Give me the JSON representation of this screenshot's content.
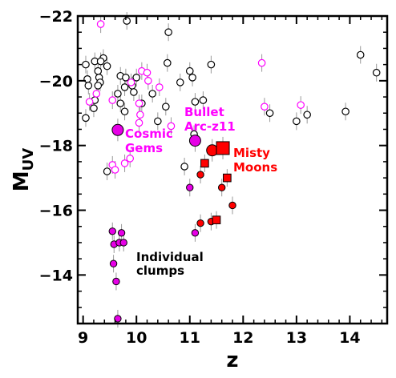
{
  "chart_data": {
    "type": "scatter",
    "xlabel": "z",
    "ylabel_main": "M",
    "ylabel_sub": "UV",
    "xlim": [
      8.9,
      14.7
    ],
    "ylim": [
      -12.5,
      -22.0
    ],
    "y_inverted": true,
    "x_ticks": [
      9,
      10,
      11,
      12,
      13,
      14
    ],
    "y_ticks": [
      -22,
      -20,
      -18,
      -16,
      -14
    ],
    "grid": false,
    "colors": {
      "open_black": "#000000",
      "open_magenta": "#ff00ff",
      "filled_magenta": "#e600e6",
      "filled_red": "#ff0000",
      "errorbar": "#999999"
    },
    "annotations": [
      {
        "id": "bullet",
        "lines": [
          "Bullet",
          "Arc-z11"
        ],
        "color": "#ff00ff"
      },
      {
        "id": "cosmic",
        "lines": [
          "Cosmic",
          "Gems"
        ],
        "color": "#ff00ff"
      },
      {
        "id": "misty",
        "lines": [
          "Misty",
          "Moons"
        ],
        "color": "#ff0000"
      },
      {
        "id": "clumps",
        "lines": [
          "Individual",
          "clumps"
        ],
        "color": "#000000"
      }
    ],
    "series": [
      {
        "marker": "open-circle",
        "color": "#000000",
        "points": [
          [
            9.82,
            -21.85
          ],
          [
            10.6,
            -21.5
          ],
          [
            9.05,
            -20.5
          ],
          [
            9.22,
            -20.6
          ],
          [
            9.38,
            -20.7
          ],
          [
            9.33,
            -20.6
          ],
          [
            9.45,
            -20.45
          ],
          [
            9.28,
            -20.3
          ],
          [
            9.3,
            -20.1
          ],
          [
            9.7,
            -20.15
          ],
          [
            9.8,
            -20.1
          ],
          [
            10.0,
            -20.1
          ],
          [
            9.32,
            -19.95
          ],
          [
            9.28,
            -19.85
          ],
          [
            9.08,
            -20.05
          ],
          [
            9.1,
            -19.85
          ],
          [
            9.92,
            -19.85
          ],
          [
            9.78,
            -19.8
          ],
          [
            9.95,
            -19.65
          ],
          [
            9.65,
            -19.6
          ],
          [
            9.22,
            -19.4
          ],
          [
            9.7,
            -19.3
          ],
          [
            10.1,
            -19.3
          ],
          [
            10.3,
            -19.6
          ],
          [
            10.55,
            -19.2
          ],
          [
            9.2,
            -19.15
          ],
          [
            9.05,
            -18.85
          ],
          [
            9.78,
            -19.05
          ],
          [
            10.4,
            -18.75
          ],
          [
            10.58,
            -20.55
          ],
          [
            10.82,
            -19.95
          ],
          [
            11.0,
            -20.3
          ],
          [
            11.05,
            -20.1
          ],
          [
            11.1,
            -19.35
          ],
          [
            11.25,
            -19.4
          ],
          [
            11.4,
            -20.5
          ],
          [
            12.5,
            -19.0
          ],
          [
            13.0,
            -18.75
          ],
          [
            13.2,
            -18.95
          ],
          [
            13.92,
            -19.05
          ],
          [
            14.2,
            -20.8
          ],
          [
            14.5,
            -20.25
          ],
          [
            9.45,
            -17.2
          ],
          [
            10.9,
            -17.35
          ],
          [
            11.08,
            -18.35
          ]
        ]
      },
      {
        "marker": "open-circle",
        "color": "#ff00ff",
        "points": [
          [
            9.33,
            -21.75
          ],
          [
            9.12,
            -19.35
          ],
          [
            9.25,
            -19.6
          ],
          [
            9.55,
            -19.4
          ],
          [
            9.9,
            -19.95
          ],
          [
            10.05,
            -19.3
          ],
          [
            10.1,
            -20.3
          ],
          [
            10.2,
            -20.25
          ],
          [
            10.22,
            -20.0
          ],
          [
            10.43,
            -19.8
          ],
          [
            10.07,
            -18.95
          ],
          [
            10.05,
            -18.7
          ],
          [
            10.65,
            -18.6
          ],
          [
            9.88,
            -17.6
          ],
          [
            9.78,
            -17.45
          ],
          [
            9.55,
            -17.4
          ],
          [
            9.6,
            -17.25
          ],
          [
            12.35,
            -20.55
          ],
          [
            12.4,
            -19.2
          ],
          [
            13.08,
            -19.25
          ]
        ]
      },
      {
        "marker": "filled-circle",
        "color": "#e600e6",
        "size": "small",
        "points": [
          [
            9.55,
            -15.35
          ],
          [
            9.72,
            -15.3
          ],
          [
            9.58,
            -14.95
          ],
          [
            9.68,
            -15.0
          ],
          [
            9.76,
            -15.0
          ],
          [
            9.57,
            -14.35
          ],
          [
            9.62,
            -13.8
          ],
          [
            9.65,
            -12.65
          ],
          [
            11.0,
            -16.7
          ],
          [
            11.1,
            -15.3
          ]
        ]
      },
      {
        "marker": "filled-circle",
        "color": "#ff0000",
        "size": "small",
        "points": [
          [
            11.2,
            -17.1
          ],
          [
            11.6,
            -16.7
          ],
          [
            11.8,
            -16.15
          ],
          [
            11.2,
            -15.6
          ],
          [
            11.4,
            -15.65
          ]
        ]
      },
      {
        "marker": "filled-square",
        "color": "#ff0000",
        "size": "small",
        "points": [
          [
            11.28,
            -17.45
          ],
          [
            11.7,
            -17.0
          ],
          [
            11.5,
            -15.7
          ]
        ]
      },
      {
        "marker": "filled-circle",
        "color": "#e600e6",
        "size": "large",
        "points": [
          [
            9.65,
            -18.48
          ],
          [
            11.1,
            -18.15
          ]
        ]
      },
      {
        "marker": "filled-circle",
        "color": "#ff0000",
        "size": "large",
        "points": [
          [
            11.42,
            -17.85
          ]
        ]
      },
      {
        "marker": "filled-square",
        "color": "#ff0000",
        "size": "large",
        "points": [
          [
            11.62,
            -17.92
          ]
        ]
      }
    ]
  }
}
